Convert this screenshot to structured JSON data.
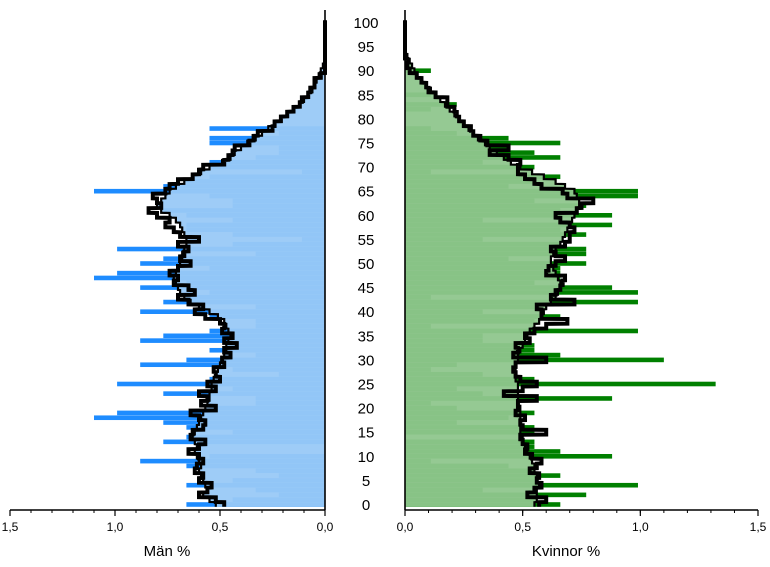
{
  "chart_data": {
    "type": "bar",
    "orientation": "horizontal",
    "layout": "population-pyramid",
    "ages": [
      0,
      1,
      2,
      3,
      4,
      5,
      6,
      7,
      8,
      9,
      10,
      11,
      12,
      13,
      14,
      15,
      16,
      17,
      18,
      19,
      20,
      21,
      22,
      23,
      24,
      25,
      26,
      27,
      28,
      29,
      30,
      31,
      32,
      33,
      34,
      35,
      36,
      37,
      38,
      39,
      40,
      41,
      42,
      43,
      44,
      45,
      46,
      47,
      48,
      49,
      50,
      51,
      52,
      53,
      54,
      55,
      56,
      57,
      58,
      59,
      60,
      61,
      62,
      63,
      64,
      65,
      66,
      67,
      68,
      69,
      70,
      71,
      72,
      73,
      74,
      75,
      76,
      77,
      78,
      79,
      80,
      81,
      82,
      83,
      84,
      85,
      86,
      87,
      88,
      89,
      90,
      91,
      92,
      93,
      94,
      95,
      96,
      97,
      98,
      99,
      100
    ],
    "age_ticks": [
      0,
      5,
      10,
      15,
      20,
      25,
      30,
      35,
      40,
      45,
      50,
      55,
      60,
      65,
      70,
      75,
      80,
      85,
      90,
      95,
      100
    ],
    "x_ticks": [
      1.5,
      1.0,
      0.5,
      0.0
    ],
    "x_tick_labels_men": [
      "1,5",
      "1,0",
      "0,5",
      "0,0"
    ],
    "x_tick_labels_women": [
      "0,0",
      "0,5",
      "1,0",
      "1,5"
    ],
    "xlim": [
      0,
      1.5
    ],
    "ylim": [
      0,
      100
    ],
    "men": {
      "label": "Män %",
      "colors": {
        "outline": "#1e8cff",
        "fill": "#99c9f7",
        "line": "#000000"
      },
      "outline": [
        0.66,
        0.44,
        0.22,
        0.33,
        0.66,
        0.44,
        0.22,
        0.33,
        0.66,
        0.88,
        0.55,
        0.0,
        0.0,
        0.77,
        0.66,
        0.44,
        0.66,
        0.77,
        1.1,
        0.99,
        0.55,
        0.33,
        0.33,
        0.77,
        0.44,
        0.99,
        0.55,
        0.22,
        0.44,
        0.88,
        0.66,
        0.33,
        0.55,
        0.44,
        0.88,
        0.77,
        0.55,
        0.33,
        0.33,
        0.55,
        0.88,
        0.33,
        0.77,
        0.66,
        0.55,
        0.88,
        0.66,
        1.1,
        0.99,
        0.55,
        0.88,
        0.77,
        0.33,
        0.99,
        0.44,
        0.11,
        0.44,
        0.66,
        0.66,
        0.44,
        0.66,
        0.77,
        0.44,
        0.44,
        0.55,
        1.1,
        0.77,
        0.66,
        0.55,
        0.11,
        0.55,
        0.55,
        0.33,
        0.22,
        0.22,
        0.55,
        0.55,
        0.22,
        0.55,
        0.0,
        0.0,
        0.0,
        0.0,
        0.0,
        0.0,
        0.0,
        0.0,
        0.0,
        0.0,
        0.0,
        0.0,
        0.0,
        0.0,
        0.0,
        0.0,
        0.0,
        0.0,
        0.0,
        0.0,
        0.0,
        0.0
      ],
      "smooth": [
        0.52,
        0.55,
        0.58,
        0.56,
        0.57,
        0.58,
        0.59,
        0.6,
        0.59,
        0.6,
        0.61,
        0.62,
        0.61,
        0.62,
        0.63,
        0.62,
        0.61,
        0.6,
        0.59,
        0.58,
        0.57,
        0.56,
        0.55,
        0.55,
        0.54,
        0.54,
        0.53,
        0.52,
        0.51,
        0.5,
        0.49,
        0.48,
        0.47,
        0.47,
        0.46,
        0.45,
        0.46,
        0.47,
        0.48,
        0.51,
        0.55,
        0.6,
        0.64,
        0.67,
        0.69,
        0.7,
        0.71,
        0.72,
        0.71,
        0.7,
        0.69,
        0.68,
        0.68,
        0.67,
        0.66,
        0.66,
        0.67,
        0.68,
        0.69,
        0.71,
        0.74,
        0.78,
        0.8,
        0.78,
        0.76,
        0.74,
        0.71,
        0.67,
        0.63,
        0.59,
        0.55,
        0.49,
        0.45,
        0.43,
        0.4,
        0.37,
        0.33,
        0.3,
        0.27,
        0.24,
        0.21,
        0.18,
        0.15,
        0.12,
        0.1,
        0.08,
        0.06,
        0.05,
        0.04,
        0.03,
        0.02,
        0.01,
        0.0,
        0.0,
        0.0,
        0.0,
        0.0,
        0.0,
        0.0,
        0.0,
        0.0
      ],
      "jagged": [
        0.48,
        0.52,
        0.6,
        0.56,
        0.54,
        0.6,
        0.58,
        0.62,
        0.61,
        0.58,
        0.6,
        0.65,
        0.6,
        0.57,
        0.64,
        0.63,
        0.58,
        0.57,
        0.6,
        0.64,
        0.52,
        0.59,
        0.56,
        0.6,
        0.52,
        0.56,
        0.5,
        0.52,
        0.53,
        0.48,
        0.49,
        0.45,
        0.48,
        0.42,
        0.48,
        0.44,
        0.49,
        0.48,
        0.5,
        0.57,
        0.62,
        0.58,
        0.65,
        0.7,
        0.62,
        0.65,
        0.72,
        0.7,
        0.74,
        0.7,
        0.64,
        0.69,
        0.67,
        0.65,
        0.7,
        0.6,
        0.69,
        0.72,
        0.76,
        0.74,
        0.8,
        0.84,
        0.78,
        0.8,
        0.82,
        0.76,
        0.74,
        0.7,
        0.63,
        0.6,
        0.58,
        0.48,
        0.46,
        0.44,
        0.43,
        0.36,
        0.34,
        0.32,
        0.25,
        0.24,
        0.21,
        0.18,
        0.15,
        0.12,
        0.11,
        0.08,
        0.07,
        0.05,
        0.05,
        0.02,
        0.0,
        0.0,
        0.0,
        0.0,
        0.0,
        0.0,
        0.0,
        0.0,
        0.0,
        0.0,
        0.0
      ]
    },
    "women": {
      "label": "Kvinnor %",
      "colors": {
        "outline": "#008000",
        "fill": "#8fc68d",
        "line": "#000000"
      },
      "outline": [
        0.66,
        0.55,
        0.77,
        0.33,
        0.99,
        0.55,
        0.66,
        0.55,
        0.44,
        0.11,
        0.88,
        0.66,
        0.55,
        0.55,
        0.0,
        0.55,
        0.55,
        0.22,
        0.44,
        0.55,
        0.22,
        0.11,
        0.88,
        0.33,
        0.22,
        1.32,
        0.55,
        0.33,
        0.11,
        0.22,
        1.1,
        0.66,
        0.55,
        0.55,
        0.33,
        0.33,
        0.99,
        0.11,
        0.55,
        0.66,
        0.33,
        0.55,
        0.99,
        0.11,
        0.99,
        0.88,
        0.55,
        0.66,
        0.66,
        0.66,
        0.77,
        0.44,
        0.77,
        0.77,
        0.66,
        0.33,
        0.77,
        0.66,
        0.88,
        0.33,
        0.88,
        0.66,
        0.77,
        0.55,
        0.99,
        0.99,
        0.44,
        0.55,
        0.66,
        0.11,
        0.55,
        0.33,
        0.66,
        0.55,
        0.44,
        0.66,
        0.44,
        0.22,
        0.11,
        0.0,
        0.0,
        0.0,
        0.11,
        0.22,
        0.0,
        0.11,
        0.0,
        0.0,
        0.0,
        0.0,
        0.11,
        0.0,
        0.0,
        0.0,
        0.0,
        0.0,
        0.0,
        0.0,
        0.0,
        0.0,
        0.0
      ],
      "smooth": [
        0.55,
        0.56,
        0.56,
        0.56,
        0.57,
        0.56,
        0.56,
        0.55,
        0.55,
        0.54,
        0.53,
        0.52,
        0.51,
        0.5,
        0.5,
        0.49,
        0.49,
        0.49,
        0.49,
        0.49,
        0.49,
        0.48,
        0.48,
        0.48,
        0.48,
        0.48,
        0.47,
        0.47,
        0.47,
        0.47,
        0.48,
        0.48,
        0.49,
        0.5,
        0.51,
        0.52,
        0.53,
        0.55,
        0.57,
        0.58,
        0.59,
        0.6,
        0.62,
        0.64,
        0.65,
        0.66,
        0.66,
        0.65,
        0.64,
        0.63,
        0.62,
        0.62,
        0.63,
        0.64,
        0.66,
        0.67,
        0.68,
        0.69,
        0.7,
        0.71,
        0.72,
        0.73,
        0.74,
        0.74,
        0.73,
        0.72,
        0.68,
        0.64,
        0.59,
        0.54,
        0.49,
        0.45,
        0.42,
        0.39,
        0.36,
        0.34,
        0.31,
        0.29,
        0.27,
        0.25,
        0.23,
        0.21,
        0.19,
        0.17,
        0.15,
        0.13,
        0.11,
        0.09,
        0.07,
        0.05,
        0.04,
        0.03,
        0.02,
        0.01,
        0.0,
        0.0,
        0.0,
        0.0,
        0.0,
        0.0,
        0.0
      ],
      "jagged": [
        0.57,
        0.6,
        0.52,
        0.55,
        0.58,
        0.56,
        0.57,
        0.53,
        0.56,
        0.58,
        0.54,
        0.51,
        0.52,
        0.5,
        0.49,
        0.6,
        0.5,
        0.49,
        0.51,
        0.47,
        0.48,
        0.48,
        0.56,
        0.42,
        0.5,
        0.56,
        0.49,
        0.47,
        0.46,
        0.47,
        0.6,
        0.46,
        0.48,
        0.47,
        0.53,
        0.51,
        0.55,
        0.6,
        0.69,
        0.58,
        0.58,
        0.56,
        0.72,
        0.62,
        0.64,
        0.66,
        0.67,
        0.68,
        0.6,
        0.61,
        0.64,
        0.68,
        0.64,
        0.62,
        0.68,
        0.7,
        0.7,
        0.72,
        0.7,
        0.66,
        0.64,
        0.73,
        0.75,
        0.8,
        0.69,
        0.67,
        0.58,
        0.55,
        0.51,
        0.48,
        0.48,
        0.49,
        0.44,
        0.36,
        0.44,
        0.35,
        0.32,
        0.29,
        0.28,
        0.25,
        0.23,
        0.22,
        0.21,
        0.18,
        0.18,
        0.13,
        0.1,
        0.09,
        0.07,
        0.05,
        0.02,
        0.01,
        0.01,
        0.0,
        0.0,
        0.0,
        0.0,
        0.0,
        0.0,
        0.0,
        0.0
      ]
    }
  }
}
